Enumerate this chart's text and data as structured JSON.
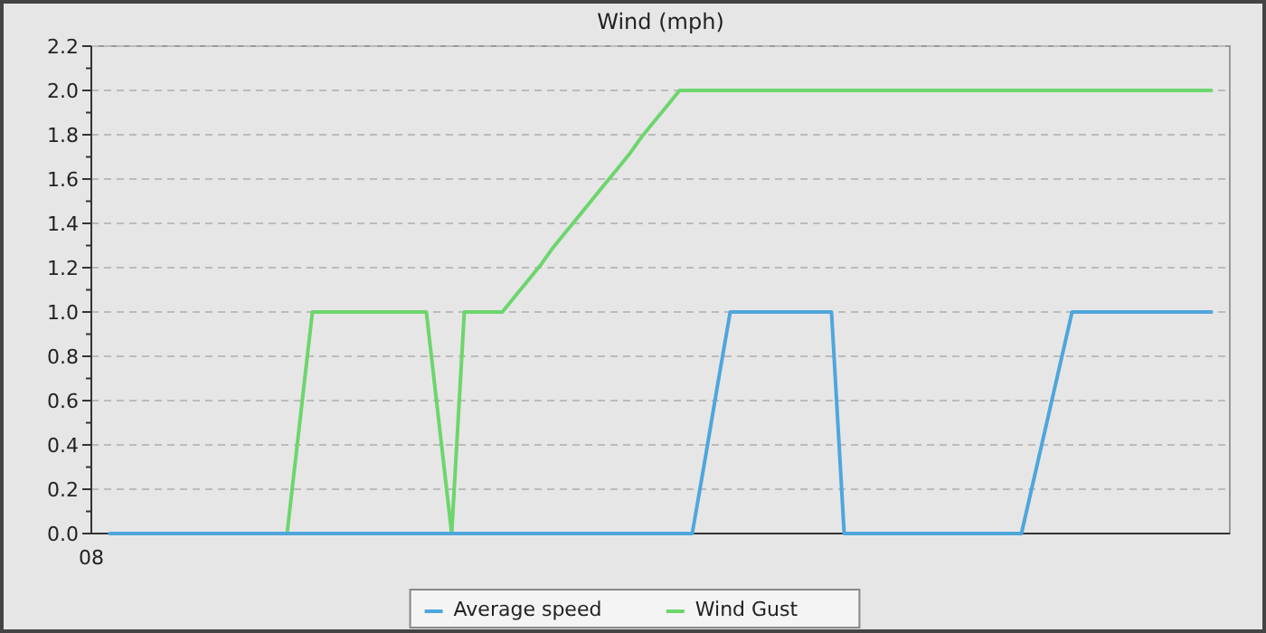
{
  "chart_data": {
    "type": "line",
    "title": "Wind (mph)",
    "annotations": [
      "08"
    ],
    "categories": [
      null,
      null,
      null,
      null,
      null,
      null,
      null,
      null,
      null,
      null,
      null,
      null,
      null,
      null,
      null,
      null,
      null,
      null,
      null,
      null,
      null,
      null,
      null,
      null,
      null,
      null,
      null,
      null,
      null,
      null,
      null,
      null,
      null,
      null,
      null,
      null,
      null,
      null,
      null,
      null,
      null,
      null,
      null,
      null,
      null,
      null,
      null,
      null,
      null,
      null,
      null,
      null,
      null,
      null,
      null,
      null,
      null,
      null,
      null,
      null,
      null,
      null,
      null,
      null,
      null,
      null,
      null,
      null,
      null,
      null,
      null,
      null,
      null,
      null,
      null,
      null,
      null,
      null,
      null,
      null,
      null,
      null,
      null,
      null,
      null,
      null,
      null,
      null
    ],
    "ylim": [
      0,
      2.2
    ],
    "yticks": [
      {
        "value": 0,
        "label": "0.0"
      },
      {
        "value": 0.1,
        "label": null
      },
      {
        "value": 0.2,
        "label": "0.2"
      },
      {
        "value": 0.3,
        "label": null
      },
      {
        "value": 0.4,
        "label": "0.4"
      },
      {
        "value": 0.5,
        "label": null
      },
      {
        "value": 0.6,
        "label": "0.6"
      },
      {
        "value": 0.7,
        "label": null
      },
      {
        "value": 0.8,
        "label": "0.8"
      },
      {
        "value": 0.9,
        "label": null
      },
      {
        "value": 1,
        "label": "1.0"
      },
      {
        "value": 1.1,
        "label": null
      },
      {
        "value": 1.2,
        "label": "1.2"
      },
      {
        "value": 1.3,
        "label": null
      },
      {
        "value": 1.4,
        "label": "1.4"
      },
      {
        "value": 1.5,
        "label": null
      },
      {
        "value": 1.6,
        "label": "1.6"
      },
      {
        "value": 1.7,
        "label": null
      },
      {
        "value": 1.8,
        "label": "1.8"
      },
      {
        "value": 1.9,
        "label": null
      },
      {
        "value": 2,
        "label": "2.0"
      },
      {
        "value": 2.1,
        "label": null
      },
      {
        "value": 2.2,
        "label": "2.2"
      }
    ],
    "grid": "y",
    "legend": "bottom",
    "line_style": "solid",
    "marker": "none",
    "series": [
      {
        "name": "Average speed",
        "color": "#4ea6dc",
        "values": [
          0,
          0,
          0,
          0,
          0,
          0,
          0,
          0,
          0,
          0,
          0,
          0,
          0,
          0,
          0,
          0,
          0,
          0,
          0,
          0,
          0,
          0,
          0,
          0,
          0,
          0,
          0,
          0,
          0,
          0,
          0,
          0,
          0,
          0,
          0,
          0,
          0,
          0,
          0,
          0,
          0,
          0,
          0,
          0,
          0,
          0,
          0,
          0.33,
          0.67,
          1,
          1,
          1,
          1,
          1,
          1,
          1,
          1,
          1,
          0,
          0,
          0,
          0,
          0,
          0,
          0,
          0,
          0,
          0,
          0,
          0,
          0,
          0,
          0,
          0.25,
          0.5,
          0.75,
          1,
          1,
          1,
          1,
          1,
          1,
          1,
          1,
          1,
          1,
          1,
          1
        ]
      },
      {
        "name": "Wind Gust",
        "color": "#6cd66c",
        "values": [
          null,
          null,
          null,
          null,
          null,
          null,
          null,
          null,
          null,
          null,
          null,
          null,
          null,
          null,
          0,
          0.5,
          1,
          1,
          1,
          1,
          1,
          1,
          1,
          1,
          1,
          1,
          0.5,
          0,
          1,
          1,
          1,
          1,
          1.07,
          1.14,
          1.21,
          1.29,
          1.36,
          1.43,
          1.5,
          1.57,
          1.64,
          1.71,
          1.79,
          1.86,
          1.93,
          2,
          2,
          2,
          2,
          2,
          2,
          2,
          2,
          2,
          2,
          2,
          2,
          2,
          2,
          2,
          2,
          2,
          2,
          2,
          2,
          2,
          2,
          2,
          2,
          2,
          2,
          2,
          2,
          2,
          2,
          2,
          2,
          2,
          2,
          2,
          2,
          2,
          2,
          2,
          2,
          2,
          2,
          2
        ]
      }
    ]
  }
}
